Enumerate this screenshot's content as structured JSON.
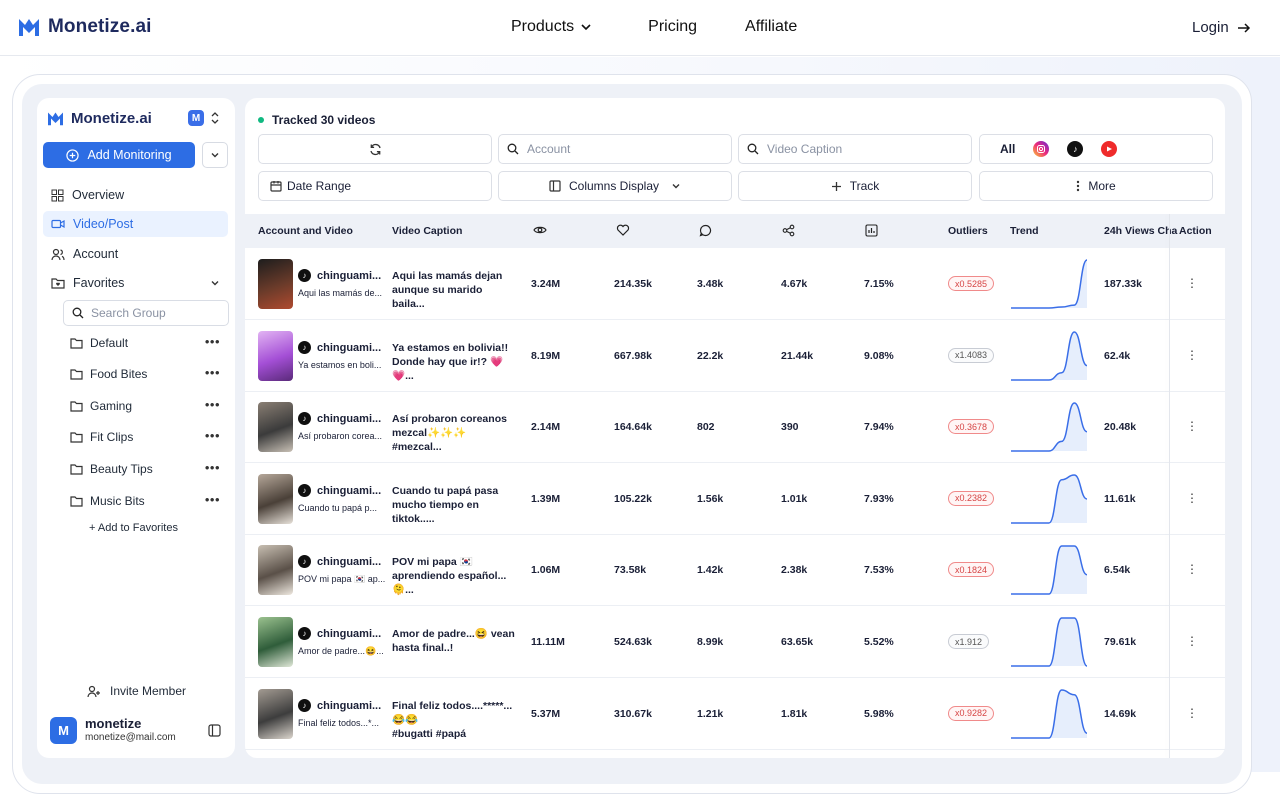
{
  "nav": {
    "brand": "Monetize.ai",
    "links": [
      "Products",
      "Pricing",
      "Affiliate"
    ],
    "login": "Login"
  },
  "sidebar": {
    "brand": "Monetize.ai",
    "workspace_badge": "M",
    "add_monitoring": "Add Monitoring",
    "items": [
      {
        "label": "Overview",
        "icon": "grid-icon"
      },
      {
        "label": "Video/Post",
        "icon": "video-icon"
      },
      {
        "label": "Account",
        "icon": "users-icon"
      },
      {
        "label": "Favorites",
        "icon": "folder-heart-icon"
      }
    ],
    "search_placeholder": "Search Group",
    "groups": [
      "Default",
      "Food Bites",
      "Gaming",
      "Fit Clips",
      "Beauty Tips",
      "Music Bits"
    ],
    "group_menu": "•••",
    "add_favorites": "+ Add to Favorites",
    "invite": "Invite Member",
    "user": {
      "initial": "M",
      "name": "monetize",
      "email": "monetize@mail.com"
    }
  },
  "main": {
    "tracked": "Tracked 30 videos",
    "filters": {
      "account_placeholder": "Account",
      "caption_placeholder": "Video Caption",
      "platform_all": "All",
      "date_range": "Date Range",
      "columns_display": "Columns Display",
      "track": "Track",
      "more": "More"
    },
    "headers": {
      "account_video": "Account and Video",
      "caption": "Video Caption",
      "outliers": "Outliers",
      "trend": "Trend",
      "views_24h": "24h Views Cha",
      "action": "Action"
    },
    "header_icons": [
      "eye-icon",
      "heart-icon",
      "comment-icon",
      "share-icon",
      "engagement-icon"
    ],
    "rows": [
      {
        "account": "chinguami...",
        "acct_caption": "Aqui las mamás de...",
        "caption1": "Aqui las mamás dejan",
        "caption2": "aunque su marido baila...",
        "views": "3.24M",
        "likes": "214.35k",
        "comments": "3.48k",
        "shares": "4.67k",
        "eng": "7.15%",
        "outlier": "x0.5285",
        "outlier_color": "red",
        "views24": "187.33k",
        "trend": [
          0,
          0,
          0,
          0,
          0.02,
          0.06,
          1
        ]
      },
      {
        "account": "chinguami...",
        "acct_caption": "Ya estamos en boli...",
        "caption1": "Ya estamos en bolivia!!",
        "caption2": "Donde hay que ir!? 💗💗...",
        "views": "8.19M",
        "likes": "667.98k",
        "comments": "22.2k",
        "shares": "21.44k",
        "eng": "9.08%",
        "outlier": "x1.4083",
        "outlier_color": "gray",
        "views24": "62.4k",
        "trend": [
          0,
          0,
          0,
          0,
          0.15,
          1,
          0.3
        ]
      },
      {
        "account": "chinguami...",
        "acct_caption": "Así probaron corea...",
        "caption1": "Así probaron coreanos",
        "caption2": "mezcal✨✨✨ #mezcal...",
        "views": "2.14M",
        "likes": "164.64k",
        "comments": "802",
        "shares": "390",
        "eng": "7.94%",
        "outlier": "x0.3678",
        "outlier_color": "red",
        "views24": "20.48k",
        "trend": [
          0,
          0,
          0,
          0,
          0.2,
          1,
          0.4
        ]
      },
      {
        "account": "chinguami...",
        "acct_caption": "Cuando tu papá p...",
        "caption1": "Cuando tu papá pasa",
        "caption2": "mucho tiempo en tiktok.....",
        "views": "1.39M",
        "likes": "105.22k",
        "comments": "1.56k",
        "shares": "1.01k",
        "eng": "7.93%",
        "outlier": "x0.2382",
        "outlier_color": "red",
        "views24": "11.61k",
        "trend": [
          0,
          0,
          0,
          0,
          0.9,
          1,
          0.5
        ]
      },
      {
        "account": "chinguami...",
        "acct_caption": "POV mi papa 🇰🇷 ap...",
        "caption1": "POV mi papa 🇰🇷",
        "caption2": "aprendiendo español...🫠...",
        "views": "1.06M",
        "likes": "73.58k",
        "comments": "1.42k",
        "shares": "2.38k",
        "eng": "7.53%",
        "outlier": "x0.1824",
        "outlier_color": "red",
        "views24": "6.54k",
        "trend": [
          0,
          0,
          0,
          0,
          1,
          1,
          0.4
        ]
      },
      {
        "account": "chinguami...",
        "acct_caption": "Amor de padre...😆...",
        "caption1": "Amor de padre...😆 vean",
        "caption2": "hasta final..!",
        "views": "11.11M",
        "likes": "524.63k",
        "comments": "8.99k",
        "shares": "63.65k",
        "eng": "5.52%",
        "outlier": "x1.912",
        "outlier_color": "gray",
        "views24": "79.61k",
        "trend": [
          0,
          0,
          0,
          0,
          1,
          1,
          0
        ]
      },
      {
        "account": "chinguami...",
        "acct_caption": "Final feliz todos...*...",
        "caption1": "Final feliz todos....*****...😂😂",
        "caption2": "#bugatti #papá",
        "views": "5.37M",
        "likes": "310.67k",
        "comments": "1.21k",
        "shares": "1.81k",
        "eng": "5.98%",
        "outlier": "x0.9282",
        "outlier_color": "red",
        "views24": "14.69k",
        "trend": [
          0,
          0,
          0,
          0,
          1,
          0.9,
          0.1
        ]
      }
    ]
  },
  "colors": {
    "brand": "#2d6de4",
    "navy": "#1e2a5e",
    "trend": "#3a6ee8"
  }
}
